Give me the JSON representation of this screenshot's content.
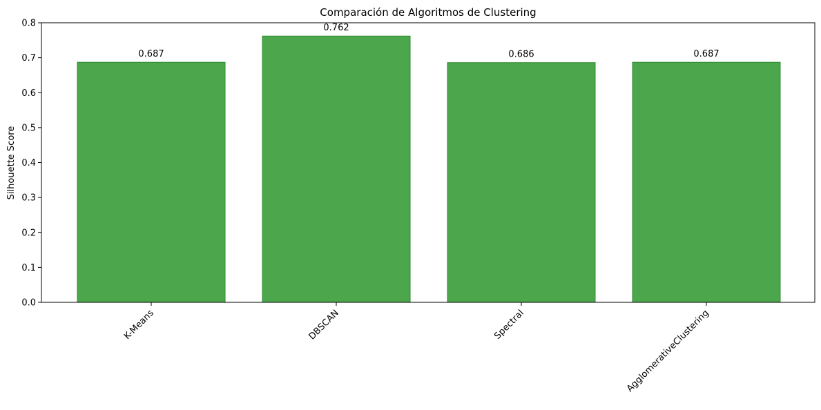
{
  "chart_data": {
    "type": "bar",
    "title": "Comparación de Algoritmos de Clustering",
    "xlabel": "",
    "ylabel": "Silhouette Score",
    "categories": [
      "K-Means",
      "DBSCAN",
      "Spectral",
      "AgglomerativeClustering"
    ],
    "values": [
      0.687,
      0.762,
      0.686,
      0.687
    ],
    "value_labels": [
      "0.687",
      "0.762",
      "0.686",
      "0.687"
    ],
    "ylim": [
      0,
      0.8
    ],
    "yticks": [
      0.0,
      0.1,
      0.2,
      0.3,
      0.4,
      0.5,
      0.6,
      0.7,
      0.8
    ],
    "ytick_labels": [
      "0.0",
      "0.1",
      "0.2",
      "0.3",
      "0.4",
      "0.5",
      "0.6",
      "0.7",
      "0.8"
    ],
    "xtick_rotation": 45,
    "grid": false,
    "bar_color": "#4ca64c",
    "bar_edge_color": "#2e8b2e"
  }
}
